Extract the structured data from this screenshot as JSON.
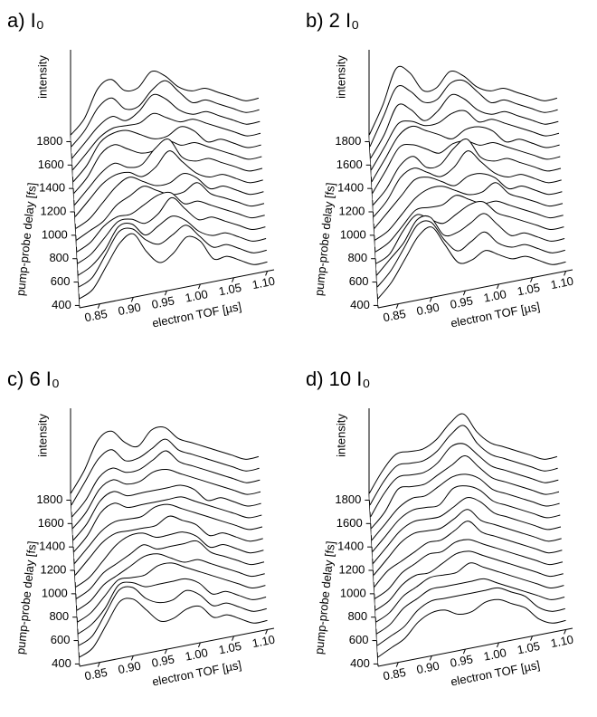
{
  "chart_data": [
    {
      "type": "waterfall",
      "title": "a) I₀",
      "xlabel": "electron TOF [µs]",
      "ylabel": "pump-probe delay [fs]",
      "zlabel": "intensity",
      "color": "#000000",
      "x": [
        0.82,
        0.84,
        0.86,
        0.88,
        0.9,
        0.92,
        0.94,
        0.96,
        0.98,
        1.0,
        1.02,
        1.04,
        1.06,
        1.08,
        1.1
      ],
      "y": [
        400,
        500,
        600,
        700,
        800,
        900,
        1000,
        1100,
        1200,
        1300,
        1400,
        1500,
        1600,
        1700,
        1800
      ],
      "z": [
        [
          1,
          2,
          5,
          8,
          9,
          6,
          4,
          5,
          7,
          6,
          3,
          3,
          2,
          1,
          1
        ],
        [
          1,
          2,
          5,
          8,
          8,
          6,
          5,
          6,
          7,
          5,
          3,
          3,
          2,
          1,
          1
        ],
        [
          1,
          2,
          4,
          7,
          7,
          5,
          6,
          7,
          6,
          4,
          3,
          3,
          2,
          1,
          1
        ],
        [
          1,
          2,
          4,
          6,
          6,
          5,
          6,
          8,
          6,
          4,
          4,
          3,
          2,
          1,
          1
        ],
        [
          1,
          2,
          4,
          5,
          5,
          6,
          7,
          7,
          5,
          5,
          4,
          3,
          2,
          1,
          1
        ],
        [
          1,
          2,
          3,
          5,
          6,
          7,
          6,
          5,
          5,
          6,
          4,
          3,
          2,
          1,
          1
        ],
        [
          1,
          2,
          4,
          6,
          7,
          6,
          5,
          5,
          6,
          5,
          3,
          3,
          2,
          1,
          1
        ],
        [
          1,
          3,
          5,
          6,
          6,
          5,
          6,
          8,
          6,
          4,
          3,
          3,
          2,
          1,
          1
        ],
        [
          1,
          3,
          5,
          6,
          5,
          5,
          7,
          8,
          5,
          4,
          4,
          3,
          2,
          1,
          1
        ],
        [
          1,
          3,
          6,
          7,
          6,
          5,
          5,
          6,
          5,
          5,
          4,
          3,
          2,
          1,
          1
        ],
        [
          1,
          3,
          6,
          7,
          7,
          6,
          5,
          5,
          6,
          5,
          3,
          3,
          2,
          1,
          1
        ],
        [
          1,
          3,
          5,
          6,
          6,
          6,
          7,
          6,
          5,
          5,
          4,
          3,
          2,
          1,
          1
        ],
        [
          1,
          3,
          5,
          6,
          5,
          6,
          8,
          7,
          5,
          4,
          4,
          3,
          2,
          1,
          1
        ],
        [
          1,
          3,
          6,
          7,
          5,
          5,
          7,
          8,
          6,
          4,
          4,
          3,
          2,
          1,
          1
        ],
        [
          1,
          3,
          7,
          8,
          6,
          6,
          8,
          7,
          5,
          4,
          4,
          3,
          2,
          1,
          1
        ]
      ],
      "xlim": [
        0.82,
        1.11
      ],
      "ylim": [
        380,
        1850
      ],
      "zlim": [
        0,
        10
      ],
      "xticks": [
        0.85,
        {
          "value": 0.9,
          "label": "0.90"
        },
        0.95,
        {
          "value": 1,
          "label": "1.00"
        },
        1.05,
        {
          "value": 1.1,
          "label": "1.10"
        }
      ],
      "yticks": [
        400,
        600,
        800,
        1000,
        1200,
        1400,
        1600,
        1800
      ]
    },
    {
      "type": "waterfall",
      "title": "b) 2 I₀",
      "xlabel": "electron TOF [µs]",
      "ylabel": "pump-probe delay [fs]",
      "zlabel": "intensity",
      "color": "#000000",
      "x": [
        0.82,
        0.84,
        0.86,
        0.88,
        0.9,
        0.92,
        0.94,
        0.96,
        0.98,
        1.0,
        1.02,
        1.04,
        1.06,
        1.08,
        1.1
      ],
      "y": [
        400,
        500,
        600,
        700,
        800,
        900,
        1000,
        1100,
        1200,
        1300,
        1400,
        1500,
        1600,
        1700,
        1800
      ],
      "z": [
        [
          1,
          3,
          6,
          9,
          10,
          7,
          4,
          4,
          5,
          4,
          3,
          3,
          2,
          1,
          1
        ],
        [
          1,
          3,
          6,
          9,
          9,
          6,
          4,
          5,
          6,
          4,
          3,
          3,
          2,
          1,
          1
        ],
        [
          1,
          3,
          5,
          8,
          8,
          5,
          5,
          6,
          7,
          5,
          3,
          3,
          2,
          1,
          1
        ],
        [
          1,
          2,
          5,
          7,
          6,
          5,
          6,
          7,
          7,
          5,
          4,
          3,
          2,
          1,
          1
        ],
        [
          1,
          2,
          4,
          6,
          6,
          6,
          7,
          6,
          5,
          5,
          4,
          3,
          2,
          1,
          1
        ],
        [
          1,
          2,
          4,
          6,
          7,
          7,
          6,
          5,
          5,
          6,
          4,
          3,
          2,
          1,
          1
        ],
        [
          1,
          3,
          5,
          7,
          7,
          6,
          5,
          6,
          6,
          5,
          3,
          3,
          2,
          1,
          1
        ],
        [
          1,
          3,
          6,
          7,
          6,
          5,
          6,
          8,
          6,
          4,
          3,
          3,
          2,
          1,
          1
        ],
        [
          1,
          3,
          6,
          7,
          5,
          5,
          7,
          8,
          5,
          4,
          4,
          3,
          2,
          1,
          1
        ],
        [
          1,
          4,
          7,
          7,
          6,
          5,
          6,
          6,
          5,
          5,
          4,
          3,
          2,
          1,
          1
        ],
        [
          1,
          4,
          7,
          8,
          7,
          6,
          5,
          6,
          6,
          5,
          3,
          3,
          2,
          1,
          1
        ],
        [
          1,
          4,
          7,
          7,
          6,
          6,
          7,
          7,
          5,
          5,
          4,
          3,
          2,
          1,
          1
        ],
        [
          1,
          4,
          8,
          7,
          5,
          6,
          8,
          7,
          5,
          4,
          4,
          3,
          2,
          1,
          1
        ],
        [
          1,
          5,
          9,
          8,
          6,
          6,
          8,
          8,
          6,
          4,
          4,
          3,
          2,
          1,
          1
        ],
        [
          1,
          5,
          10,
          9,
          6,
          6,
          8,
          7,
          5,
          4,
          4,
          3,
          2,
          1,
          1
        ]
      ],
      "xlim": [
        0.82,
        1.11
      ],
      "ylim": [
        380,
        1850
      ],
      "zlim": [
        0,
        10
      ],
      "xticks": [
        0.85,
        {
          "value": 0.9,
          "label": "0.90"
        },
        0.95,
        {
          "value": 1,
          "label": "1.00"
        },
        1.05,
        {
          "value": 1.1,
          "label": "1.10"
        }
      ],
      "yticks": [
        400,
        600,
        800,
        1000,
        1200,
        1400,
        1600,
        1800
      ]
    },
    {
      "type": "waterfall",
      "title": "c) 6 I₀",
      "xlabel": "electron TOF [µs]",
      "ylabel": "pump-probe delay [fs]",
      "zlabel": "intensity",
      "color": "#000000",
      "x": [
        0.82,
        0.84,
        0.86,
        0.88,
        0.9,
        0.92,
        0.94,
        0.96,
        0.98,
        1.0,
        1.02,
        1.04,
        1.06,
        1.08,
        1.1
      ],
      "y": [
        400,
        500,
        600,
        700,
        800,
        900,
        1000,
        1100,
        1200,
        1300,
        1400,
        1500,
        1600,
        1700,
        1800
      ],
      "z": [
        [
          1,
          2,
          5,
          8,
          8,
          6,
          4,
          4,
          5,
          5,
          3,
          3,
          2,
          1,
          1
        ],
        [
          1,
          2,
          5,
          8,
          8,
          6,
          5,
          5,
          6,
          5,
          3,
          3,
          2,
          1,
          1
        ],
        [
          1,
          2,
          4,
          7,
          7,
          6,
          6,
          6,
          6,
          5,
          3,
          3,
          2,
          1,
          1
        ],
        [
          1,
          2,
          4,
          6,
          6,
          6,
          7,
          7,
          6,
          5,
          4,
          3,
          2,
          1,
          1
        ],
        [
          1,
          2,
          4,
          5,
          6,
          7,
          7,
          6,
          5,
          5,
          4,
          3,
          2,
          1,
          1
        ],
        [
          1,
          2,
          4,
          5,
          6,
          7,
          6,
          6,
          6,
          6,
          4,
          3,
          2,
          1,
          1
        ],
        [
          1,
          2,
          4,
          6,
          7,
          7,
          6,
          6,
          6,
          5,
          3,
          3,
          2,
          1,
          1
        ],
        [
          1,
          3,
          5,
          6,
          6,
          6,
          6,
          7,
          6,
          5,
          3,
          3,
          2,
          1,
          1
        ],
        [
          1,
          3,
          5,
          6,
          6,
          6,
          7,
          7,
          6,
          5,
          4,
          3,
          2,
          1,
          1
        ],
        [
          1,
          3,
          6,
          7,
          6,
          6,
          6,
          6,
          6,
          5,
          4,
          3,
          2,
          1,
          1
        ],
        [
          1,
          3,
          6,
          7,
          6,
          6,
          6,
          6,
          6,
          5,
          3,
          3,
          2,
          1,
          1
        ],
        [
          1,
          3,
          6,
          7,
          6,
          6,
          7,
          7,
          6,
          5,
          4,
          3,
          2,
          1,
          1
        ],
        [
          1,
          3,
          6,
          7,
          6,
          6,
          7,
          8,
          6,
          5,
          4,
          3,
          2,
          1,
          1
        ],
        [
          1,
          4,
          7,
          8,
          6,
          6,
          7,
          8,
          6,
          5,
          4,
          3,
          2,
          1,
          1
        ],
        [
          1,
          4,
          8,
          9,
          7,
          6,
          8,
          8,
          6,
          5,
          4,
          3,
          2,
          1,
          1
        ]
      ],
      "xlim": [
        0.82,
        1.11
      ],
      "ylim": [
        380,
        1850
      ],
      "zlim": [
        0,
        10
      ],
      "xticks": [
        0.85,
        {
          "value": 0.9,
          "label": "0.90"
        },
        0.95,
        {
          "value": 1,
          "label": "1.00"
        },
        1.05,
        {
          "value": 1.1,
          "label": "1.10"
        }
      ],
      "yticks": [
        400,
        600,
        800,
        1000,
        1200,
        1400,
        1600,
        1800
      ]
    },
    {
      "type": "waterfall",
      "title": "d) 10 I₀",
      "xlabel": "electron TOF [µs]",
      "ylabel": "pump-probe delay [fs]",
      "zlabel": "intensity",
      "color": "#000000",
      "x": [
        0.82,
        0.84,
        0.86,
        0.88,
        0.9,
        0.92,
        0.94,
        0.96,
        0.98,
        1.0,
        1.02,
        1.04,
        1.06,
        1.08,
        1.1
      ],
      "y": [
        400,
        500,
        600,
        700,
        800,
        900,
        1000,
        1100,
        1200,
        1300,
        1400,
        1500,
        1600,
        1700,
        1800
      ],
      "z": [
        [
          1,
          2,
          3,
          5,
          6,
          6,
          5,
          5,
          6,
          6,
          5,
          4,
          2,
          1,
          1
        ],
        [
          1,
          2,
          3,
          5,
          6,
          6,
          6,
          6,
          6,
          6,
          5,
          4,
          2,
          1,
          1
        ],
        [
          1,
          2,
          4,
          5,
          6,
          6,
          6,
          6,
          6,
          5,
          4,
          3,
          2,
          1,
          1
        ],
        [
          1,
          2,
          4,
          5,
          6,
          6,
          6,
          7,
          6,
          5,
          4,
          3,
          2,
          1,
          1
        ],
        [
          1,
          2,
          4,
          5,
          5,
          6,
          7,
          7,
          6,
          5,
          4,
          3,
          2,
          1,
          1
        ],
        [
          1,
          2,
          4,
          5,
          6,
          6,
          7,
          7,
          6,
          5,
          4,
          3,
          2,
          1,
          1
        ],
        [
          1,
          3,
          4,
          5,
          6,
          6,
          7,
          8,
          6,
          5,
          4,
          3,
          2,
          1,
          1
        ],
        [
          1,
          3,
          5,
          6,
          6,
          6,
          7,
          8,
          6,
          5,
          4,
          3,
          2,
          1,
          1
        ],
        [
          1,
          3,
          5,
          6,
          6,
          6,
          7,
          8,
          7,
          5,
          4,
          3,
          2,
          1,
          1
        ],
        [
          1,
          3,
          5,
          6,
          6,
          6,
          8,
          8,
          7,
          5,
          4,
          3,
          2,
          1,
          1
        ],
        [
          1,
          3,
          5,
          6,
          6,
          7,
          8,
          8,
          7,
          5,
          4,
          3,
          2,
          1,
          1
        ],
        [
          1,
          3,
          6,
          6,
          6,
          7,
          8,
          9,
          7,
          5,
          4,
          3,
          2,
          1,
          1
        ],
        [
          1,
          4,
          6,
          6,
          6,
          7,
          9,
          9,
          7,
          5,
          4,
          3,
          2,
          1,
          1
        ],
        [
          1,
          4,
          6,
          6,
          6,
          7,
          9,
          10,
          7,
          5,
          4,
          3,
          2,
          1,
          1
        ],
        [
          1,
          4,
          6,
          6,
          6,
          7,
          9,
          10,
          7,
          5,
          4,
          3,
          2,
          1,
          1
        ]
      ],
      "xlim": [
        0.82,
        1.11
      ],
      "ylim": [
        380,
        1850
      ],
      "zlim": [
        0,
        10
      ],
      "xticks": [
        0.85,
        {
          "value": 0.9,
          "label": "0.90"
        },
        0.95,
        {
          "value": 1,
          "label": "1.00"
        },
        1.05,
        {
          "value": 1.1,
          "label": "1.10"
        }
      ],
      "yticks": [
        400,
        600,
        800,
        1000,
        1200,
        1400,
        1600,
        1800
      ]
    }
  ]
}
